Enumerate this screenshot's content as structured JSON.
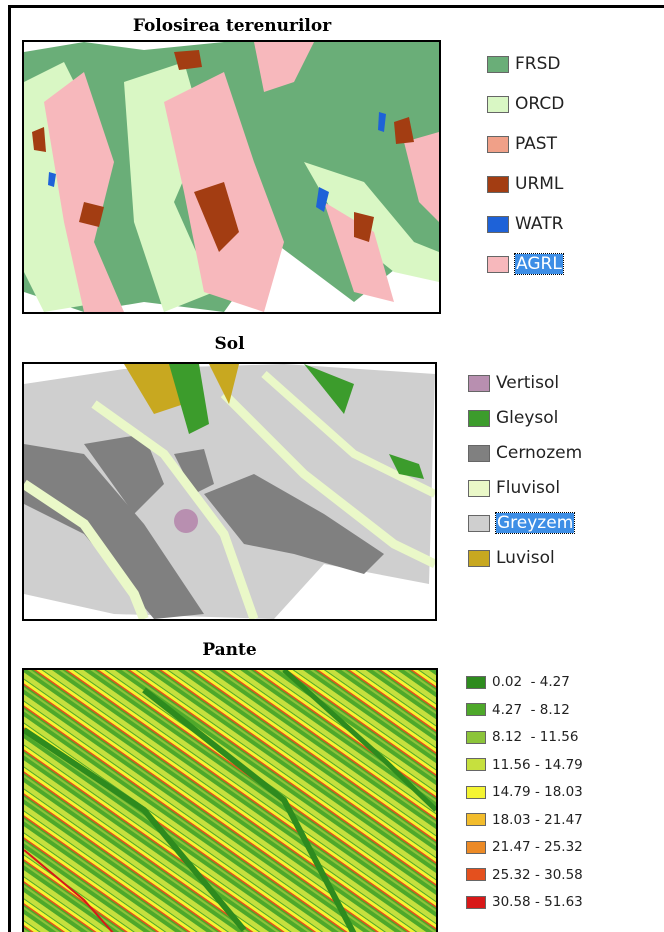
{
  "panels": [
    {
      "title": "Folosirea terenurilor",
      "legend": [
        {
          "label": "FRSD",
          "color": "#6aae78"
        },
        {
          "label": "ORCD",
          "color": "#d9f7c4"
        },
        {
          "label": "PAST",
          "color": "#f0a088"
        },
        {
          "label": "URML",
          "color": "#a33d12"
        },
        {
          "label": "WATR",
          "color": "#1e62d8"
        },
        {
          "label": "AGRL",
          "color": "#f7b8bc",
          "highlighted": true
        }
      ]
    },
    {
      "title": "Sol",
      "legend": [
        {
          "label": "Vertisol",
          "color": "#b88fb0"
        },
        {
          "label": "Gleysol",
          "color": "#3c9c2c"
        },
        {
          "label": "Cernozem",
          "color": "#808080"
        },
        {
          "label": "Fluvisol",
          "color": "#eaf8c8"
        },
        {
          "label": "Greyzem",
          "color": "#cfcfcf",
          "highlighted": true
        },
        {
          "label": "Luvisol",
          "color": "#c8a820"
        }
      ]
    },
    {
      "title": "Pante",
      "legend": [
        {
          "label": "0.02  - 4.27",
          "color": "#2e8b1e"
        },
        {
          "label": "4.27  - 8.12",
          "color": "#4ea82a"
        },
        {
          "label": "8.12  - 11.56",
          "color": "#8cc43a"
        },
        {
          "label": "11.56 - 14.79",
          "color": "#c6e03e"
        },
        {
          "label": "14.79 - 18.03",
          "color": "#f4f432"
        },
        {
          "label": "18.03 - 21.47",
          "color": "#f2bc2c"
        },
        {
          "label": "21.47 - 25.32",
          "color": "#ec8a26"
        },
        {
          "label": "25.32 - 30.58",
          "color": "#e4501e"
        },
        {
          "label": "30.58 - 51.63",
          "color": "#d81818"
        }
      ]
    }
  ]
}
